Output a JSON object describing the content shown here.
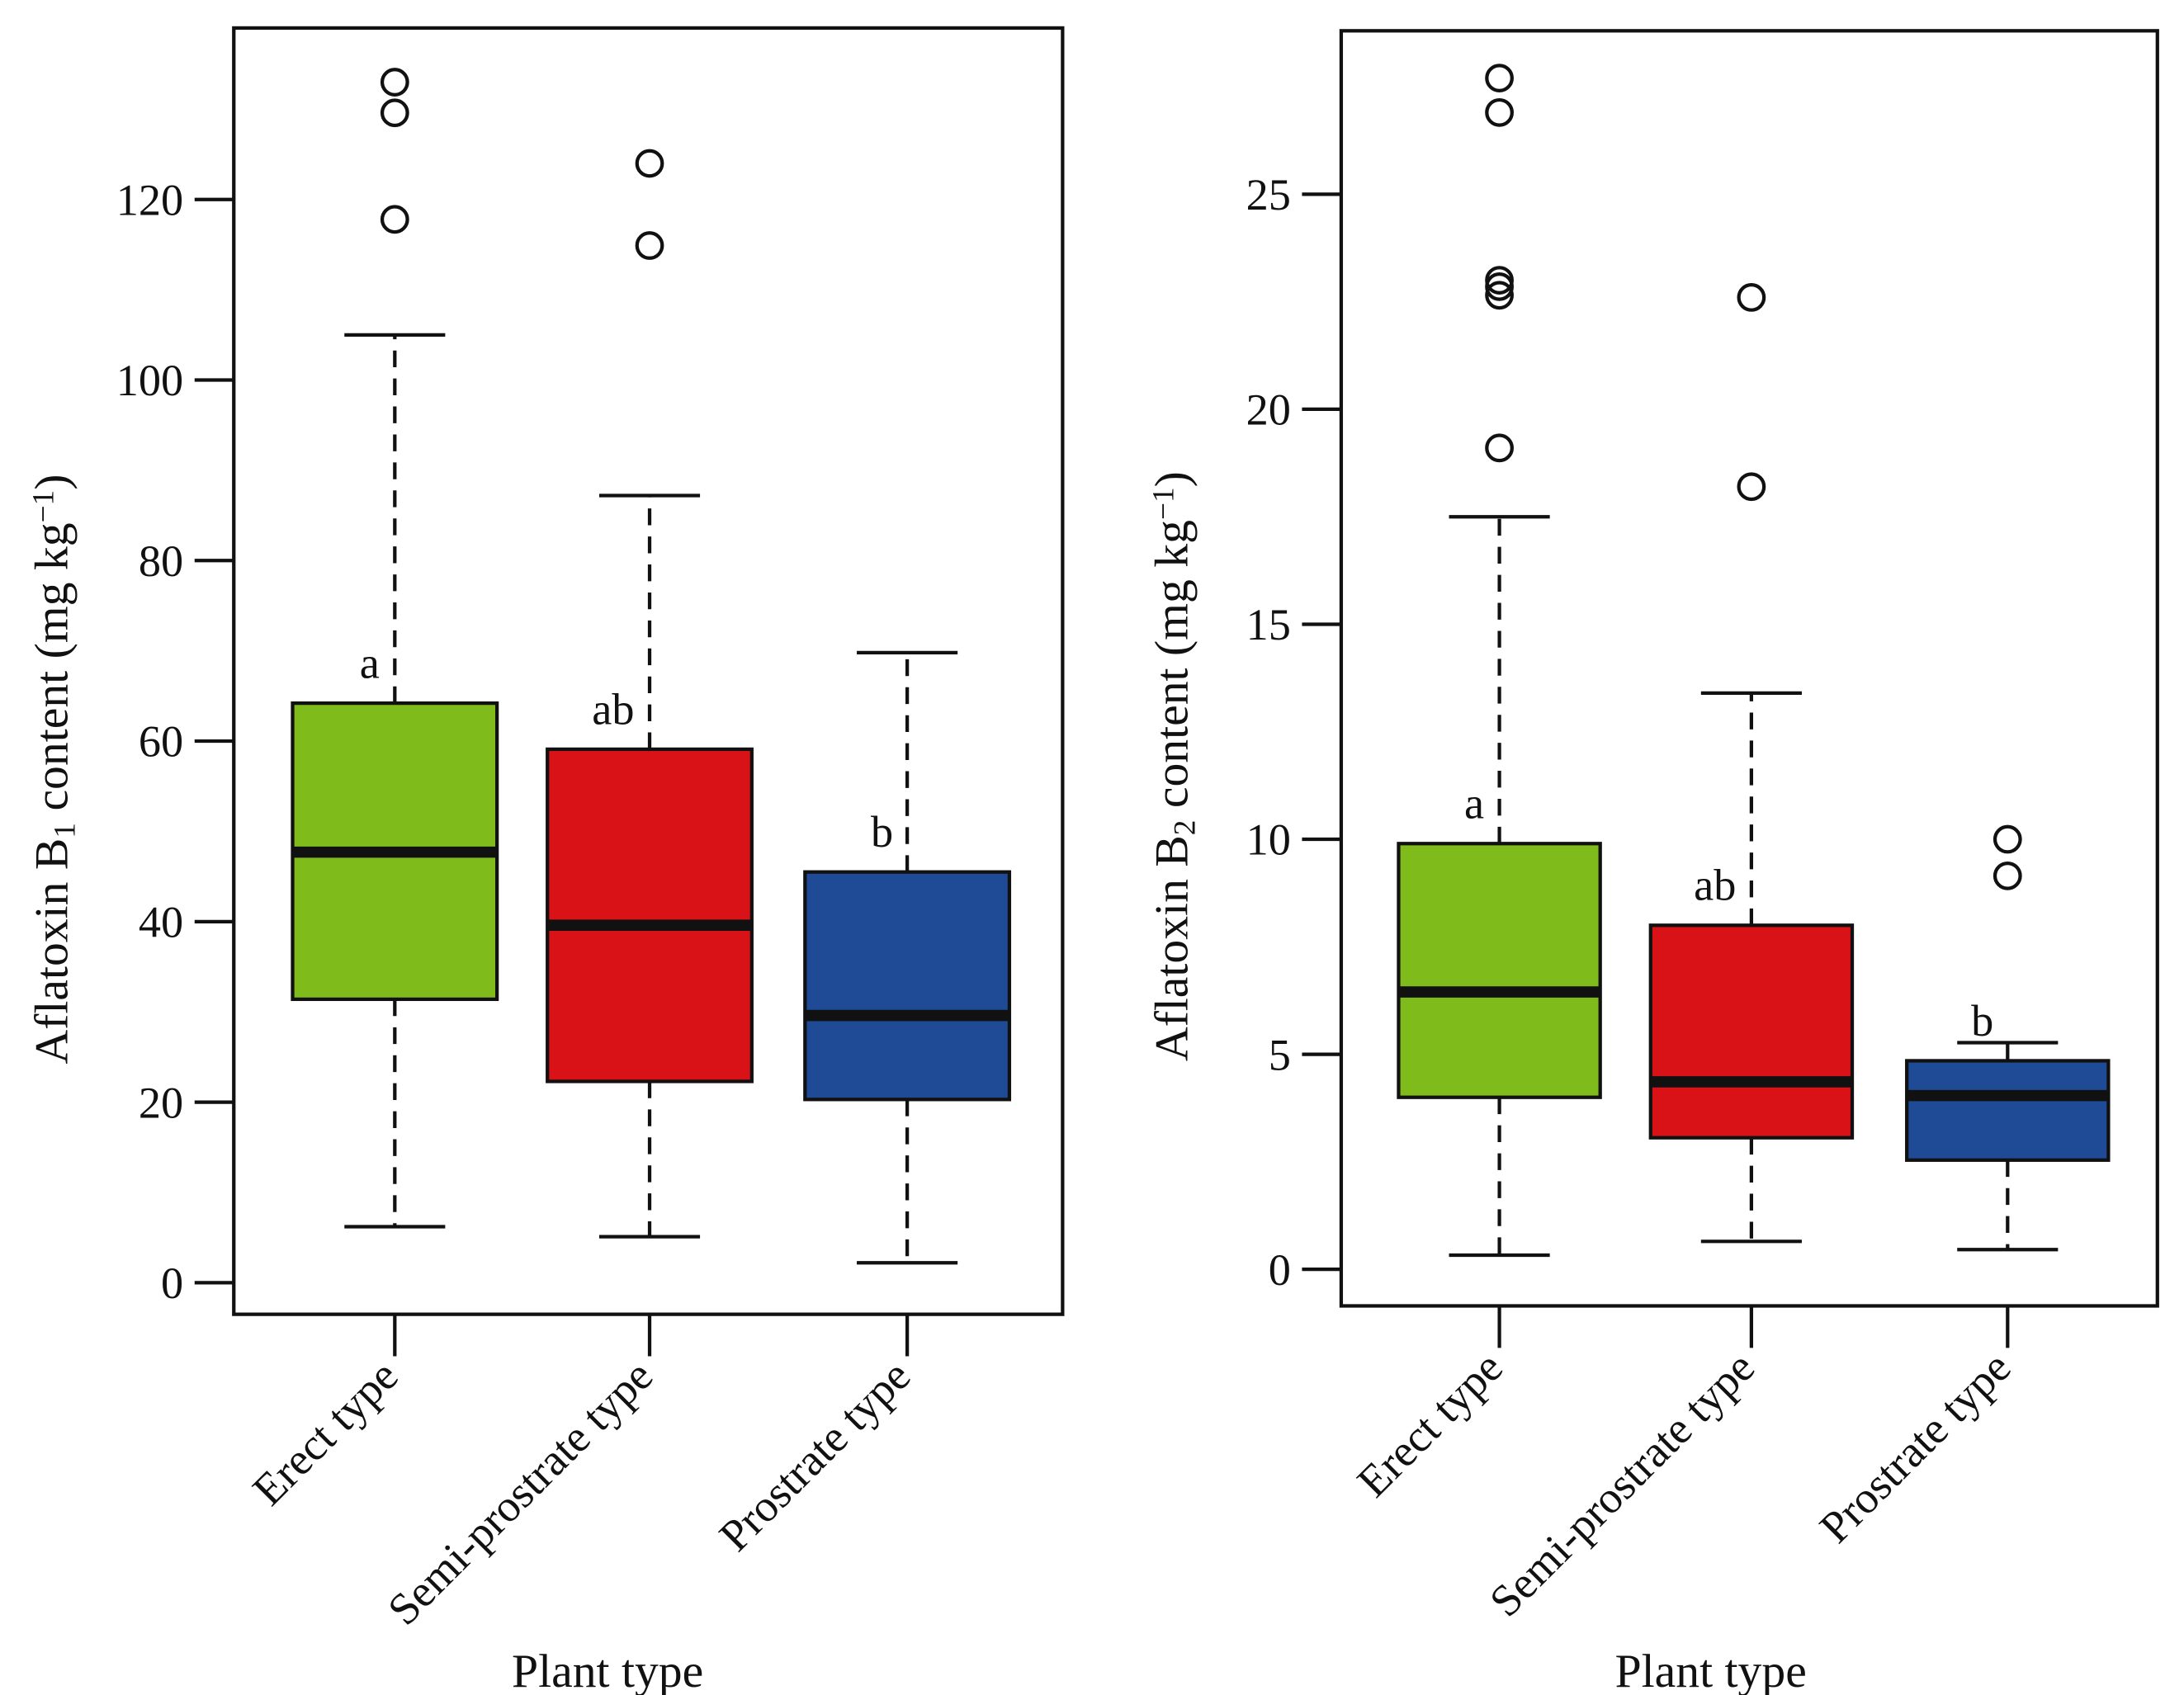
{
  "colors": {
    "erect": "#80BB1C",
    "semi": "#D81217",
    "prostrate": "#1E4A96",
    "line": "#111111"
  },
  "chart_data": [
    {
      "type": "box",
      "id": "b1",
      "ylabel_main": "Aflatoxin B",
      "ylabel_sub": "1",
      "ylabel_rest": " content (mg kg",
      "ylabel_sup": "−1",
      "ylabel_end": ")",
      "xlabel": "Plant type",
      "ylim": [
        -3.5,
        139
      ],
      "yticks": [
        0,
        20,
        40,
        60,
        80,
        100,
        120
      ],
      "categories": [
        "Erect type",
        "Semi-prostrate type",
        "Prostrate type"
      ],
      "boxes": [
        {
          "whisker_low": 6.2,
          "q1": 31.4,
          "median": 47.7,
          "q3": 64.2,
          "whisker_high": 105,
          "outliers": [
            133,
            129.6,
            117.8
          ],
          "letter": "a"
        },
        {
          "whisker_low": 5.1,
          "q1": 22.3,
          "median": 39.6,
          "q3": 59.1,
          "whisker_high": 87.2,
          "outliers": [
            124,
            114.9
          ],
          "letter": "ab"
        },
        {
          "whisker_low": 2.2,
          "q1": 20.3,
          "median": 29.6,
          "q3": 45.5,
          "whisker_high": 69.8,
          "outliers": [],
          "letter": "b"
        }
      ]
    },
    {
      "type": "box",
      "id": "b2",
      "ylabel_main": "Aflatoxin B",
      "ylabel_sub": "2",
      "ylabel_rest": " content (mg kg",
      "ylabel_sup": "−1",
      "ylabel_end": ")",
      "xlabel": "Plant type",
      "ylim": [
        -0.85,
        28.8
      ],
      "yticks": [
        0,
        5,
        10,
        15,
        20,
        25
      ],
      "categories": [
        "Erect type",
        "Semi-prostrate type",
        "Prostrate type"
      ],
      "boxes": [
        {
          "whisker_low": 0.33,
          "q1": 4.0,
          "median": 6.45,
          "q3": 9.9,
          "whisker_high": 17.5,
          "outliers": [
            27.7,
            26.9,
            23.0,
            22.85,
            22.65,
            19.1
          ],
          "letter": "a"
        },
        {
          "whisker_low": 0.65,
          "q1": 3.06,
          "median": 4.36,
          "q3": 8.0,
          "whisker_high": 13.4,
          "outliers": [
            22.6,
            18.2
          ],
          "letter": "ab"
        },
        {
          "whisker_low": 0.46,
          "q1": 2.54,
          "median": 4.04,
          "q3": 4.85,
          "whisker_high": 5.27,
          "outliers": [
            10.0,
            9.15
          ],
          "letter": "b"
        }
      ]
    }
  ]
}
